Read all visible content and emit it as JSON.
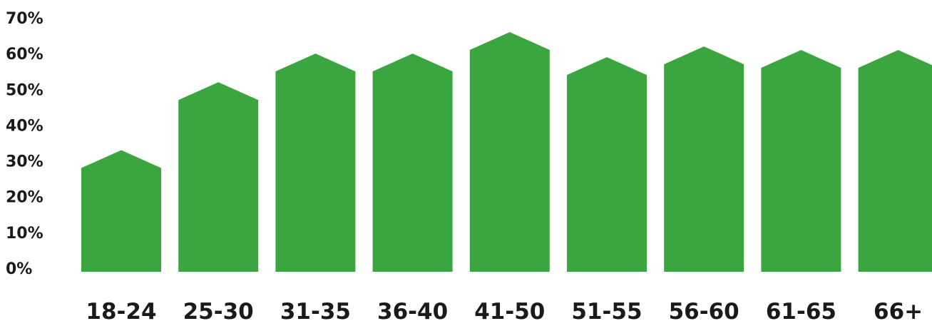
{
  "chart_data": {
    "type": "bar",
    "bar_shape": "house",
    "color": "#3ba53f",
    "categories": [
      "18-24",
      "25-30",
      "31-35",
      "36-40",
      "41-50",
      "51-55",
      "56-60",
      "61-65",
      "66+"
    ],
    "values": [
      34,
      53,
      61,
      61,
      67,
      60,
      63,
      62,
      62
    ],
    "ylim": [
      0,
      70
    ],
    "yticks": [
      "0%",
      "10%",
      "20%",
      "30%",
      "40%",
      "50%",
      "60%",
      "70%"
    ],
    "grid": false,
    "legend": "none"
  }
}
